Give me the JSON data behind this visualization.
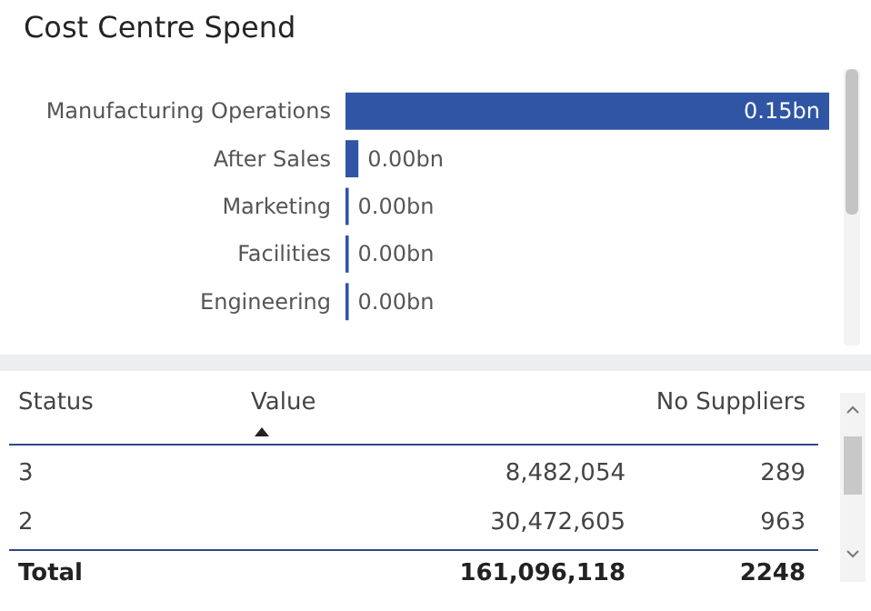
{
  "chart_data": [
    {
      "type": "bar",
      "title": "Cost Centre Spend",
      "orientation": "horizontal",
      "categories": [
        "Manufacturing Operations",
        "After Sales",
        "Marketing",
        "Facilities",
        "Engineering"
      ],
      "values": [
        0.15,
        0.004,
        0.001,
        0.001,
        0.001
      ],
      "value_labels": [
        "0.15bn",
        "0.00bn",
        "0.00bn",
        "0.00bn",
        "0.00bn"
      ],
      "color": "#2f55a4",
      "tick_labels": "y"
    },
    {
      "type": "other",
      "annotations": [
        "Status",
        "Value",
        "No Suppliers",
        "3",
        "8,482,054",
        "289",
        "2",
        "30,472,605",
        "963",
        "Total",
        "161,096,118",
        "2248"
      ]
    }
  ]
}
